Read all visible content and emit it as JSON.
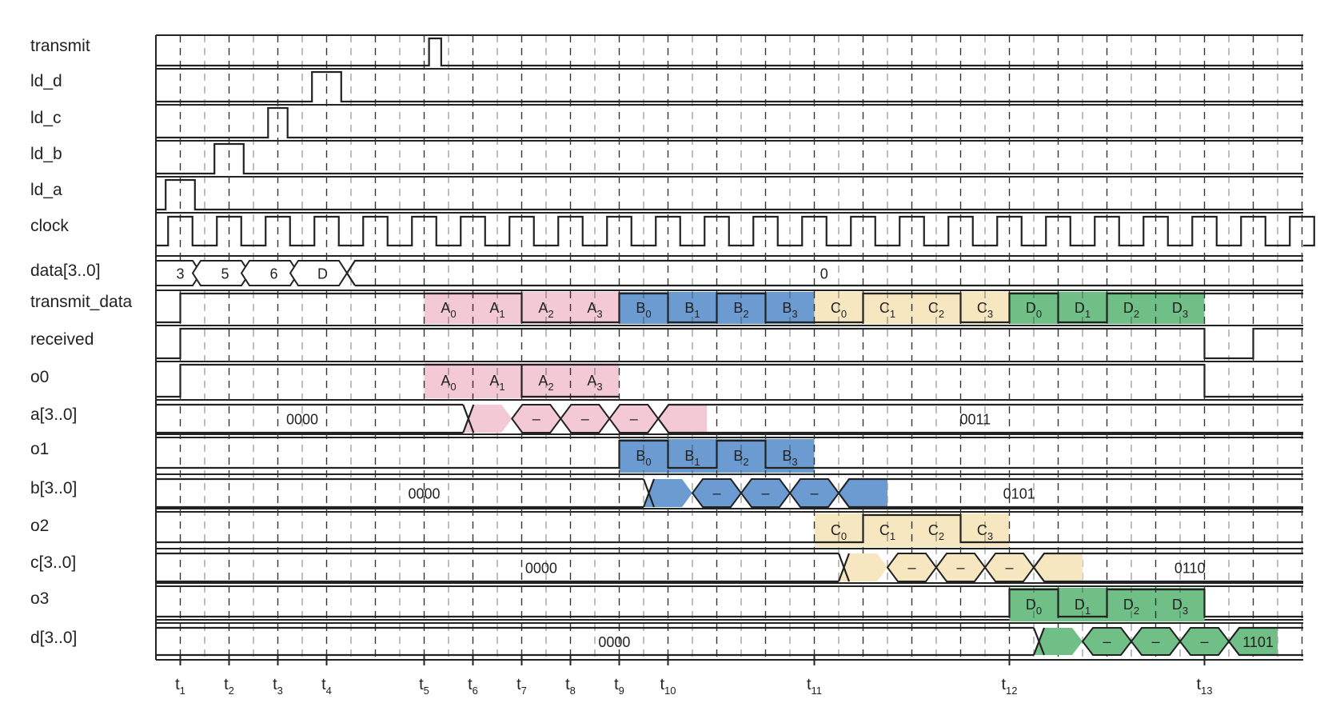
{
  "colors": {
    "pink": "#f2c9d4",
    "blue": "#6b9bd1",
    "yellow": "#f6e7c1",
    "green": "#6fbf87",
    "line": "#222222"
  },
  "signals": [
    {
      "name": "transmit"
    },
    {
      "name": "ld_d"
    },
    {
      "name": "ld_c"
    },
    {
      "name": "ld_b"
    },
    {
      "name": "ld_a"
    },
    {
      "name": "clock"
    },
    {
      "name": "data[3..0]"
    },
    {
      "name": "transmit_data"
    },
    {
      "name": "received"
    },
    {
      "name": "o0"
    },
    {
      "name": "a[3..0]"
    },
    {
      "name": "o1"
    },
    {
      "name": "b[3..0]"
    },
    {
      "name": "o2"
    },
    {
      "name": "c[3..0]"
    },
    {
      "name": "o3"
    },
    {
      "name": "d[3..0]"
    }
  ],
  "times": [
    {
      "t": 0.5,
      "base": "t",
      "sub": "1"
    },
    {
      "t": 1.5,
      "base": "t",
      "sub": "2"
    },
    {
      "t": 2.5,
      "base": "t",
      "sub": "3"
    },
    {
      "t": 3.5,
      "base": "t",
      "sub": "4"
    },
    {
      "t": 5.5,
      "base": "t",
      "sub": "5"
    },
    {
      "t": 6.5,
      "base": "t",
      "sub": "6"
    },
    {
      "t": 7.5,
      "base": "t",
      "sub": "7"
    },
    {
      "t": 8.5,
      "base": "t",
      "sub": "8"
    },
    {
      "t": 9.5,
      "base": "t",
      "sub": "9"
    },
    {
      "t": 10.5,
      "base": "t",
      "sub": "10"
    },
    {
      "t": 13.5,
      "base": "t",
      "sub": "11"
    },
    {
      "t": 17.5,
      "base": "t",
      "sub": "12"
    },
    {
      "t": 21.5,
      "base": "t",
      "sub": "13"
    }
  ],
  "pulses": {
    "transmit": [
      5.6,
      5.85
    ],
    "ld_d": [
      3.2,
      3.8
    ],
    "ld_c": [
      2.3,
      2.7
    ],
    "ld_b": [
      1.2,
      1.8
    ],
    "ld_a": [
      0.2,
      0.8
    ]
  },
  "bit_labels": {
    "A": [
      "A",
      "A",
      "A",
      "A"
    ],
    "B": [
      "B",
      "B",
      "B",
      "B"
    ],
    "C": [
      "C",
      "C",
      "C",
      "C"
    ],
    "D": [
      "D",
      "D",
      "D",
      "D"
    ],
    "subs": [
      "0",
      "1",
      "2",
      "3"
    ]
  },
  "bus_values": {
    "data": [
      "3",
      "5",
      "6",
      "D",
      "0"
    ],
    "a": [
      "0000",
      "–",
      "–",
      "–",
      "0011"
    ],
    "b": [
      "0000",
      "–",
      "–",
      "–",
      "0101"
    ],
    "c": [
      "0000",
      "–",
      "–",
      "–",
      "0110"
    ],
    "d": [
      "0000",
      "–",
      "–",
      "–",
      "1101"
    ]
  }
}
